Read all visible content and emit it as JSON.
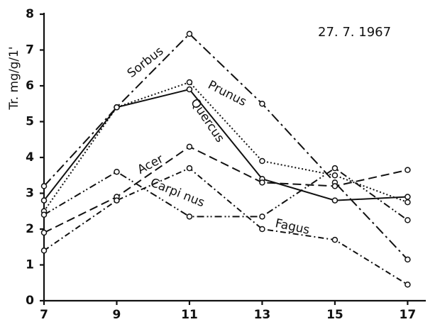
{
  "chart_data": {
    "type": "line",
    "y_label": "Tr. mg/g/1'",
    "annotation": "27. 7. 1967",
    "x": [
      7,
      9,
      11,
      13,
      15,
      17
    ],
    "xlim": [
      7,
      17.5
    ],
    "xticks": [
      7,
      9,
      11,
      13,
      15,
      17
    ],
    "ylim": [
      0,
      8
    ],
    "yticks": [
      0,
      1,
      2,
      3,
      4,
      5,
      6,
      7,
      8
    ],
    "series": [
      {
        "name": "Sorbus",
        "color": "#111111",
        "values": [
          3.2,
          5.4,
          7.45,
          5.5,
          3.3,
          1.15
        ]
      },
      {
        "name": "Prunus",
        "color": "#111111",
        "values": [
          2.5,
          5.4,
          6.1,
          3.9,
          3.5,
          2.75
        ]
      },
      {
        "name": "Quercus",
        "color": "#111111",
        "values": [
          2.8,
          5.4,
          5.9,
          3.4,
          2.8,
          2.9
        ]
      },
      {
        "name": "Acer",
        "color": "#111111",
        "values": [
          1.9,
          2.9,
          4.3,
          3.3,
          3.2,
          3.65
        ]
      },
      {
        "name": "Carpi nus",
        "color": "#111111",
        "values": [
          2.4,
          3.6,
          2.35,
          2.35,
          3.7,
          2.25
        ]
      },
      {
        "name": "Fagus",
        "color": "#111111",
        "values": [
          1.4,
          2.8,
          3.7,
          2.0,
          1.7,
          0.45
        ]
      }
    ]
  }
}
